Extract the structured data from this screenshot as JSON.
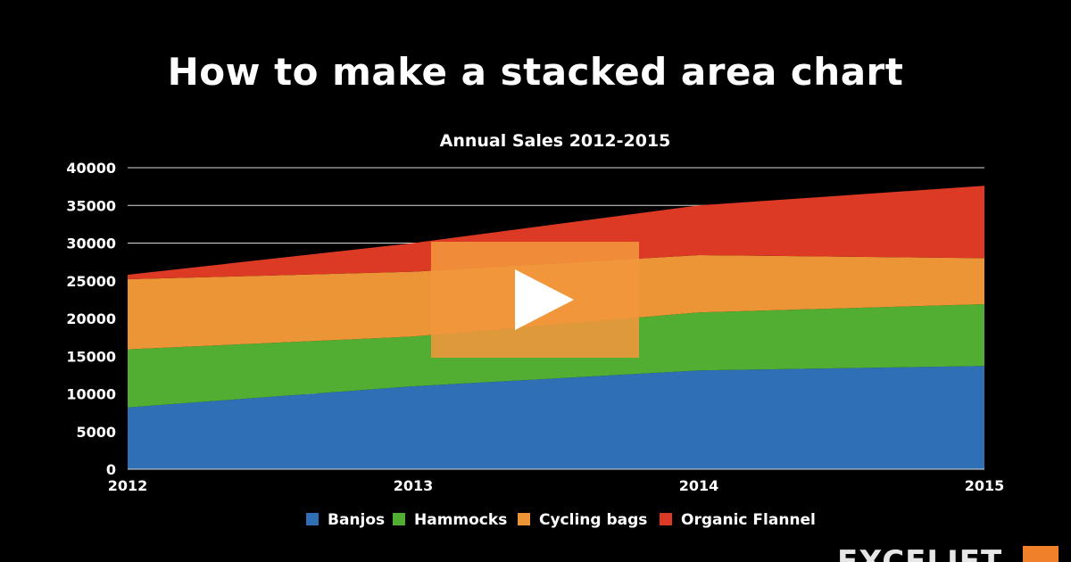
{
  "video": {
    "title": "How to make a stacked area chart",
    "play_icon": "play-icon"
  },
  "brand": {
    "name": "EXCELJET"
  },
  "colors": {
    "background": "#000000",
    "banjos": "#2e6fb5",
    "hammocks": "#52ad33",
    "cycling_bags": "#ec9537",
    "organic_flannel": "#dc3a24",
    "play_overlay": "#f1963c"
  },
  "chart_data": {
    "type": "area",
    "stacked": true,
    "title": "Annual Sales 2012-2015",
    "xlabel": "",
    "ylabel": "",
    "x": [
      "2012",
      "2013",
      "2014",
      "2015"
    ],
    "ylim": [
      0,
      40000
    ],
    "yticks": [
      "0",
      "5000",
      "10000",
      "15000",
      "20000",
      "25000",
      "30000",
      "35000",
      "40000"
    ],
    "grid": true,
    "legend_position": "bottom",
    "series": [
      {
        "name": "Banjos",
        "values": [
          8200,
          11000,
          13100,
          13700
        ]
      },
      {
        "name": "Hammocks",
        "values": [
          7700,
          6600,
          7700,
          8200
        ]
      },
      {
        "name": "Cycling bags",
        "values": [
          9300,
          8600,
          7600,
          6100
        ]
      },
      {
        "name": "Organic Flannel",
        "values": [
          600,
          3800,
          6600,
          9600
        ]
      }
    ]
  }
}
